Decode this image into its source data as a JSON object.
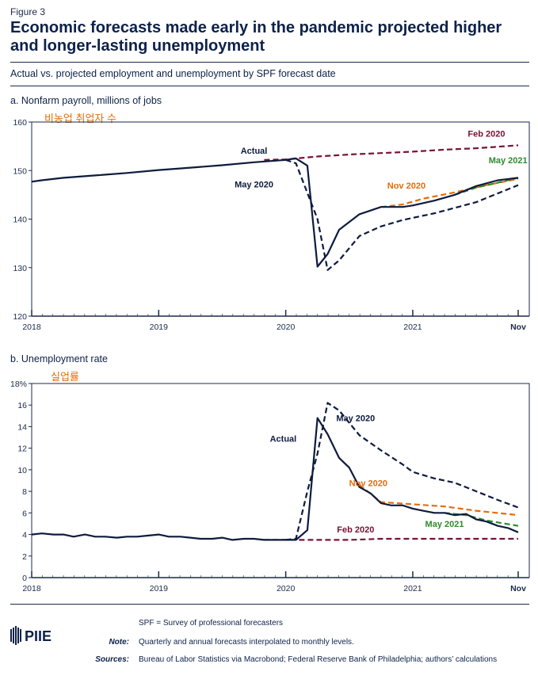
{
  "figure_label": "Figure 3",
  "title": "Economic forecasts made early in the pandemic projected higher and longer-lasting unemployment",
  "subtitle": "Actual vs. projected employment and unemployment by SPF forecast date",
  "colors": {
    "actual": "#0d1b3e",
    "may2020": "#0d1b3e",
    "feb2020": "#7a1232",
    "nov2020": "#e36c09",
    "may2021": "#2e8b2e",
    "korean": "#e36c09"
  },
  "chart_data": [
    {
      "type": "line",
      "title": "a. Nonfarm payroll, millions of jobs",
      "annotation_korean": "비농업 취업자 수",
      "ylim": [
        120,
        160
      ],
      "yticks": [
        "120",
        "130",
        "140",
        "150",
        "160"
      ],
      "xlim": [
        2018.0,
        2021.83
      ],
      "xticks": [
        {
          "x": 2018.0,
          "label": "2018"
        },
        {
          "x": 2019.0,
          "label": "2019"
        },
        {
          "x": 2020.0,
          "label": "2020"
        },
        {
          "x": 2021.0,
          "label": "2021"
        },
        {
          "x": 2021.83,
          "label": "Nov"
        }
      ],
      "series": [
        {
          "name": "Actual",
          "style": "solid",
          "color": "#0d1b3e",
          "x": [
            2018.0,
            2018.08,
            2018.25,
            2018.5,
            2018.75,
            2019.0,
            2019.25,
            2019.5,
            2019.75,
            2020.0,
            2020.08,
            2020.17,
            2020.25,
            2020.33,
            2020.42,
            2020.58,
            2020.75,
            2020.92,
            2021.0,
            2021.17,
            2021.33,
            2021.5,
            2021.67,
            2021.83
          ],
          "y": [
            147.7,
            148.0,
            148.5,
            149.0,
            149.5,
            150.1,
            150.6,
            151.1,
            151.7,
            152.2,
            152.5,
            151.0,
            130.2,
            132.8,
            137.8,
            141.0,
            142.5,
            142.5,
            142.8,
            143.8,
            145.0,
            146.8,
            148.0,
            148.5
          ]
        },
        {
          "name": "May 2020",
          "style": "dashed",
          "color": "#0d1b3e",
          "x": [
            2020.0,
            2020.08,
            2020.25,
            2020.33,
            2020.42,
            2020.58,
            2020.75,
            2020.92,
            2021.17,
            2021.5,
            2021.83
          ],
          "y": [
            152.2,
            151.5,
            140.0,
            129.5,
            131.5,
            136.5,
            138.5,
            139.8,
            141.2,
            143.5,
            147.0
          ]
        },
        {
          "name": "Feb 2020",
          "style": "dashed",
          "color": "#7a1232",
          "x": [
            2019.83,
            2020.0,
            2020.25,
            2020.5,
            2020.75,
            2021.0,
            2021.25,
            2021.5,
            2021.83
          ],
          "y": [
            152.2,
            152.3,
            152.9,
            153.3,
            153.6,
            153.9,
            154.3,
            154.6,
            155.2
          ]
        },
        {
          "name": "Nov 2020",
          "style": "dashed",
          "color": "#e36c09",
          "x": [
            2020.75,
            2020.92,
            2021.08,
            2021.33,
            2021.58,
            2021.83
          ],
          "y": [
            142.5,
            143.0,
            144.2,
            145.5,
            147.0,
            148.3
          ]
        },
        {
          "name": "May 2021",
          "style": "dashed",
          "color": "#2e8b2e",
          "x": [
            2021.33,
            2021.5,
            2021.67,
            2021.83
          ],
          "y": [
            145.0,
            146.5,
            147.5,
            148.5
          ]
        }
      ],
      "labels": [
        {
          "text": "Actual",
          "x": 2019.75,
          "y": 153.5,
          "color": "#0d1b3e"
        },
        {
          "text": "May 2020",
          "x": 2019.75,
          "y": 146.5,
          "color": "#0d1b3e"
        },
        {
          "text": "Feb 2020",
          "x": 2021.58,
          "y": 157.0,
          "color": "#7a1232"
        },
        {
          "text": "Nov 2020",
          "x": 2020.95,
          "y": 146.3,
          "color": "#e36c09"
        },
        {
          "text": "May 2021",
          "x": 2021.75,
          "y": 151.5,
          "color": "#2e8b2e"
        }
      ]
    },
    {
      "type": "line",
      "title": "b. Unemployment rate",
      "annotation_korean": "실업률",
      "ylim": [
        0,
        18
      ],
      "yticks": [
        "0",
        "2",
        "4",
        "6",
        "8",
        "10",
        "12",
        "14",
        "16",
        "18%"
      ],
      "xlim": [
        2018.0,
        2021.83
      ],
      "xticks": [
        {
          "x": 2018.0,
          "label": "2018"
        },
        {
          "x": 2019.0,
          "label": "2019"
        },
        {
          "x": 2020.0,
          "label": "2020"
        },
        {
          "x": 2021.0,
          "label": "2021"
        },
        {
          "x": 2021.83,
          "label": "Nov"
        }
      ],
      "series": [
        {
          "name": "Actual",
          "style": "solid",
          "color": "#0d1b3e",
          "x": [
            2018.0,
            2018.08,
            2018.17,
            2018.25,
            2018.33,
            2018.42,
            2018.5,
            2018.58,
            2018.67,
            2018.75,
            2018.83,
            2018.92,
            2019.0,
            2019.08,
            2019.17,
            2019.25,
            2019.33,
            2019.42,
            2019.5,
            2019.58,
            2019.67,
            2019.75,
            2019.83,
            2019.92,
            2020.0,
            2020.08,
            2020.17,
            2020.25,
            2020.33,
            2020.42,
            2020.5,
            2020.58,
            2020.67,
            2020.75,
            2020.83,
            2020.92,
            2021.0,
            2021.08,
            2021.17,
            2021.25,
            2021.33,
            2021.42,
            2021.5,
            2021.58,
            2021.67,
            2021.75,
            2021.83
          ],
          "y": [
            4.0,
            4.1,
            4.0,
            4.0,
            3.8,
            4.0,
            3.8,
            3.8,
            3.7,
            3.8,
            3.8,
            3.9,
            4.0,
            3.8,
            3.8,
            3.7,
            3.6,
            3.6,
            3.7,
            3.5,
            3.6,
            3.6,
            3.5,
            3.5,
            3.5,
            3.5,
            4.4,
            14.8,
            13.3,
            11.1,
            10.2,
            8.4,
            7.8,
            6.9,
            6.7,
            6.7,
            6.4,
            6.2,
            6.0,
            6.0,
            5.8,
            5.9,
            5.4,
            5.2,
            4.8,
            4.6,
            4.2
          ]
        },
        {
          "name": "May 2020",
          "style": "dashed",
          "color": "#0d1b3e",
          "x": [
            2020.0,
            2020.08,
            2020.17,
            2020.25,
            2020.33,
            2020.42,
            2020.58,
            2020.75,
            2020.92,
            2021.0,
            2021.17,
            2021.33,
            2021.5,
            2021.67,
            2021.83
          ],
          "y": [
            3.5,
            3.6,
            8.0,
            11.5,
            16.2,
            15.5,
            13.2,
            11.8,
            10.5,
            9.8,
            9.2,
            8.8,
            8.0,
            7.2,
            6.5
          ]
        },
        {
          "name": "Feb 2020",
          "style": "dashed",
          "color": "#7a1232",
          "x": [
            2019.83,
            2020.0,
            2020.25,
            2020.5,
            2020.75,
            2021.0,
            2021.25,
            2021.5,
            2021.83
          ],
          "y": [
            3.5,
            3.5,
            3.5,
            3.5,
            3.6,
            3.6,
            3.6,
            3.6,
            3.6
          ]
        },
        {
          "name": "Nov 2020",
          "style": "dashed",
          "color": "#e36c09",
          "x": [
            2020.58,
            2020.75,
            2021.0,
            2021.25,
            2021.5,
            2021.83
          ],
          "y": [
            8.6,
            7.0,
            6.8,
            6.6,
            6.2,
            5.8
          ]
        },
        {
          "name": "May 2021",
          "style": "dashed",
          "color": "#2e8b2e",
          "x": [
            2021.25,
            2021.42,
            2021.58,
            2021.83
          ],
          "y": [
            6.0,
            5.8,
            5.3,
            4.8
          ]
        }
      ],
      "labels": [
        {
          "text": "May 2020",
          "x": 2020.55,
          "y": 14.5,
          "color": "#0d1b3e"
        },
        {
          "text": "Actual",
          "x": 2019.98,
          "y": 12.6,
          "color": "#0d1b3e"
        },
        {
          "text": "Nov 2020",
          "x": 2020.65,
          "y": 8.5,
          "color": "#e36c09"
        },
        {
          "text": "May 2021",
          "x": 2021.25,
          "y": 4.7,
          "color": "#2e8b2e"
        },
        {
          "text": "Feb 2020",
          "x": 2020.55,
          "y": 4.2,
          "color": "#7a1232"
        }
      ]
    }
  ],
  "logo_text": "PIIE",
  "notes": {
    "spf_line": "SPF = Survey of professional forecasters",
    "note_label": "Note:",
    "note_text": "Quarterly and annual forecasts interpolated to monthly levels.",
    "sources_label": "Sources:",
    "sources_text": "Bureau of Labor Statistics via Macrobond; Federal Reserve Bank of Philadelphia; authors’ calculations"
  }
}
